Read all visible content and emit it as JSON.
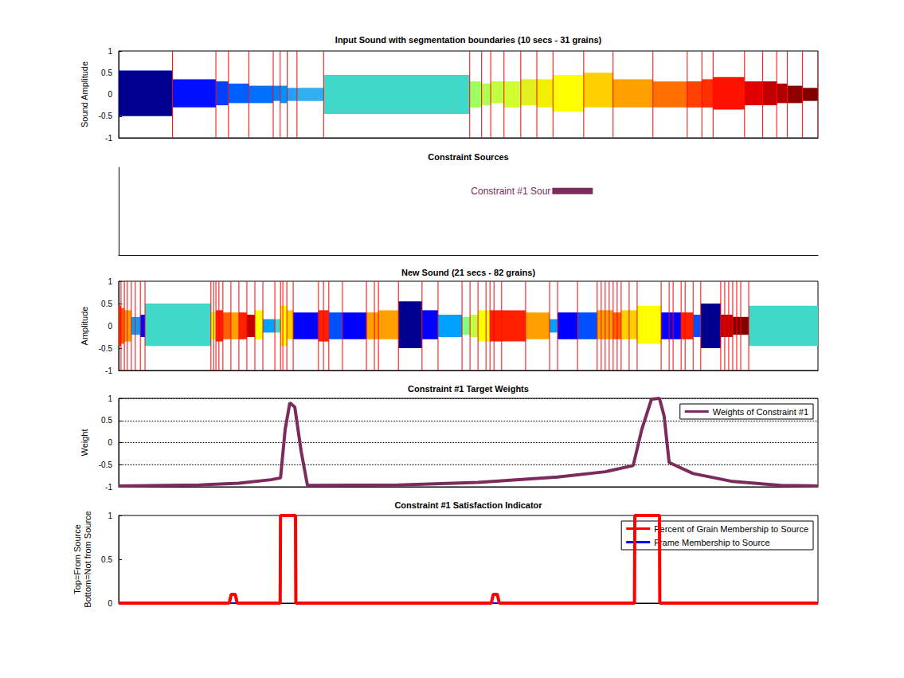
{
  "chart_data": [
    {
      "type": "waveform",
      "title": "Input Sound with segmentation boundaries (10 secs - 31 grains)",
      "ylabel": "Sound Amplitude",
      "xlim": [
        0,
        10
      ],
      "ylim": [
        -1,
        1
      ],
      "yticks": [
        -1,
        -0.5,
        0,
        0.5,
        1
      ],
      "tick_labels": "y",
      "grid": false,
      "segments": [
        {
          "start": 0,
          "end": 0.77,
          "min": -0.5,
          "max": 0.55,
          "color": "#00008f"
        },
        {
          "start": 0.77,
          "end": 1.39,
          "min": -0.3,
          "max": 0.35,
          "color": "#0010ff"
        },
        {
          "start": 1.39,
          "end": 1.57,
          "min": -0.25,
          "max": 0.3,
          "color": "#0040ff"
        },
        {
          "start": 1.57,
          "end": 1.86,
          "min": -0.2,
          "max": 0.25,
          "color": "#0060ff"
        },
        {
          "start": 1.86,
          "end": 2.21,
          "min": -0.2,
          "max": 0.2,
          "color": "#0070ff"
        },
        {
          "start": 2.21,
          "end": 2.31,
          "min": -0.15,
          "max": 0.2,
          "color": "#0080ff"
        },
        {
          "start": 2.31,
          "end": 2.41,
          "min": -0.2,
          "max": 0.2,
          "color": "#0090ff"
        },
        {
          "start": 2.41,
          "end": 2.55,
          "min": -0.15,
          "max": 0.15,
          "color": "#20a0ff"
        },
        {
          "start": 2.55,
          "end": 2.93,
          "min": -0.15,
          "max": 0.15,
          "color": "#30b0f0"
        },
        {
          "start": 2.93,
          "end": 5.02,
          "min": -0.45,
          "max": 0.45,
          "color": "#40d8c8"
        },
        {
          "start": 5.02,
          "end": 5.19,
          "min": -0.3,
          "max": 0.3,
          "color": "#a0ff60"
        },
        {
          "start": 5.19,
          "end": 5.32,
          "min": -0.25,
          "max": 0.25,
          "color": "#b0ff50"
        },
        {
          "start": 5.32,
          "end": 5.51,
          "min": -0.2,
          "max": 0.3,
          "color": "#c0ff40"
        },
        {
          "start": 5.51,
          "end": 5.75,
          "min": -0.3,
          "max": 0.3,
          "color": "#d0ff30"
        },
        {
          "start": 5.75,
          "end": 5.98,
          "min": -0.25,
          "max": 0.35,
          "color": "#e0f020"
        },
        {
          "start": 5.98,
          "end": 6.21,
          "min": -0.3,
          "max": 0.35,
          "color": "#f0f000"
        },
        {
          "start": 6.21,
          "end": 6.65,
          "min": -0.4,
          "max": 0.45,
          "color": "#ffff00"
        },
        {
          "start": 6.65,
          "end": 7.07,
          "min": -0.3,
          "max": 0.5,
          "color": "#ffd000"
        },
        {
          "start": 7.07,
          "end": 7.64,
          "min": -0.3,
          "max": 0.35,
          "color": "#ffa000"
        },
        {
          "start": 7.64,
          "end": 8.13,
          "min": -0.3,
          "max": 0.3,
          "color": "#ff7000"
        },
        {
          "start": 8.13,
          "end": 8.34,
          "min": -0.3,
          "max": 0.3,
          "color": "#ff4000"
        },
        {
          "start": 8.34,
          "end": 8.5,
          "min": -0.3,
          "max": 0.35,
          "color": "#ff3000"
        },
        {
          "start": 8.5,
          "end": 8.95,
          "min": -0.35,
          "max": 0.4,
          "color": "#ff1000"
        },
        {
          "start": 8.95,
          "end": 9.21,
          "min": -0.25,
          "max": 0.3,
          "color": "#e00000"
        },
        {
          "start": 9.21,
          "end": 9.41,
          "min": -0.25,
          "max": 0.3,
          "color": "#c00000"
        },
        {
          "start": 9.41,
          "end": 9.56,
          "min": -0.2,
          "max": 0.25,
          "color": "#b00000"
        },
        {
          "start": 9.56,
          "end": 9.78,
          "min": -0.2,
          "max": 0.2,
          "color": "#900000"
        },
        {
          "start": 9.78,
          "end": 10,
          "min": -0.15,
          "max": 0.15,
          "color": "#800000"
        }
      ],
      "boundaries": {
        "color": "#ff0000",
        "x": [
          0.77,
          1.39,
          1.57,
          1.86,
          2.21,
          2.31,
          2.41,
          2.55,
          2.93,
          5.02,
          5.19,
          5.32,
          5.51,
          5.75,
          5.98,
          6.21,
          6.65,
          7.07,
          7.64,
          8.13,
          8.34,
          8.5,
          8.95,
          9.21,
          9.41,
          9.56,
          9.78,
          10
        ]
      }
    },
    {
      "type": "timeline",
      "title": "Constraint Sources",
      "xlim": [
        0,
        10
      ],
      "tick_labels": false,
      "sources": [
        {
          "label": "Constraint #1 Sour",
          "start": 6.2,
          "end": 6.78,
          "color": "#7b2c5c"
        }
      ]
    },
    {
      "type": "waveform",
      "title": "New Sound (21 secs - 82 grains)",
      "ylabel": "Amplitude",
      "xlim": [
        0,
        21
      ],
      "ylim": [
        -1,
        1
      ],
      "yticks": [
        -1,
        -0.5,
        0,
        0.5,
        1
      ],
      "tick_labels": "y",
      "grid": false,
      "segments": [
        {
          "start": 0,
          "end": 0.07,
          "min": -0.45,
          "max": 0.45,
          "color": "#ff2000"
        },
        {
          "start": 0.07,
          "end": 0.17,
          "min": -0.4,
          "max": 0.4,
          "color": "#ff6000"
        },
        {
          "start": 0.17,
          "end": 0.38,
          "min": -0.35,
          "max": 0.35,
          "color": "#ffa000"
        },
        {
          "start": 0.38,
          "end": 0.65,
          "min": -0.2,
          "max": 0.2,
          "color": "#00a0ff"
        },
        {
          "start": 0.65,
          "end": 0.79,
          "min": -0.25,
          "max": 0.25,
          "color": "#0000ff"
        },
        {
          "start": 0.79,
          "end": 2.77,
          "min": -0.45,
          "max": 0.5,
          "color": "#40d8c8"
        },
        {
          "start": 2.77,
          "end": 2.92,
          "min": -0.3,
          "max": 0.3,
          "color": "#ffff00"
        },
        {
          "start": 2.92,
          "end": 3.13,
          "min": -0.35,
          "max": 0.35,
          "color": "#ff2000"
        },
        {
          "start": 3.13,
          "end": 3.37,
          "min": -0.3,
          "max": 0.3,
          "color": "#ff6000"
        },
        {
          "start": 3.37,
          "end": 3.61,
          "min": -0.3,
          "max": 0.3,
          "color": "#ffa000"
        },
        {
          "start": 3.61,
          "end": 3.85,
          "min": -0.3,
          "max": 0.3,
          "color": "#ff2000"
        },
        {
          "start": 3.85,
          "end": 4.09,
          "min": -0.25,
          "max": 0.25,
          "color": "#c00000"
        },
        {
          "start": 4.09,
          "end": 4.33,
          "min": -0.3,
          "max": 0.35,
          "color": "#ffff00"
        },
        {
          "start": 4.33,
          "end": 4.69,
          "min": -0.15,
          "max": 0.15,
          "color": "#00a0ff"
        },
        {
          "start": 4.69,
          "end": 4.86,
          "min": -0.15,
          "max": 0.15,
          "color": "#40d8c8"
        },
        {
          "start": 4.86,
          "end": 5.05,
          "min": -0.45,
          "max": 0.45,
          "color": "#ffff00"
        },
        {
          "start": 5.05,
          "end": 5.24,
          "min": -0.3,
          "max": 0.35,
          "color": "#ffd000"
        },
        {
          "start": 5.24,
          "end": 6.0,
          "min": -0.3,
          "max": 0.3,
          "color": "#0000ff"
        },
        {
          "start": 6.0,
          "end": 6.31,
          "min": -0.35,
          "max": 0.35,
          "color": "#ff2000"
        },
        {
          "start": 6.31,
          "end": 6.72,
          "min": -0.3,
          "max": 0.3,
          "color": "#0050ff"
        },
        {
          "start": 6.72,
          "end": 7.44,
          "min": -0.3,
          "max": 0.3,
          "color": "#0000ff"
        },
        {
          "start": 7.44,
          "end": 7.8,
          "min": -0.3,
          "max": 0.3,
          "color": "#ffa000"
        },
        {
          "start": 7.8,
          "end": 8.4,
          "min": -0.3,
          "max": 0.35,
          "color": "#ffa000"
        },
        {
          "start": 8.4,
          "end": 9.11,
          "min": -0.5,
          "max": 0.55,
          "color": "#00008f"
        },
        {
          "start": 9.11,
          "end": 9.59,
          "min": -0.3,
          "max": 0.35,
          "color": "#0000ff"
        },
        {
          "start": 9.59,
          "end": 10.31,
          "min": -0.25,
          "max": 0.25,
          "color": "#00a0ff"
        },
        {
          "start": 10.31,
          "end": 10.55,
          "min": -0.2,
          "max": 0.2,
          "color": "#80ff80"
        },
        {
          "start": 10.55,
          "end": 10.79,
          "min": -0.25,
          "max": 0.25,
          "color": "#c0ff40"
        },
        {
          "start": 10.79,
          "end": 11.15,
          "min": -0.35,
          "max": 0.35,
          "color": "#ffff00"
        },
        {
          "start": 11.15,
          "end": 11.5,
          "min": -0.35,
          "max": 0.35,
          "color": "#ff2000"
        },
        {
          "start": 11.5,
          "end": 12.22,
          "min": -0.35,
          "max": 0.35,
          "color": "#ff2000"
        },
        {
          "start": 12.22,
          "end": 12.94,
          "min": -0.3,
          "max": 0.3,
          "color": "#ffa000"
        },
        {
          "start": 12.94,
          "end": 13.18,
          "min": -0.15,
          "max": 0.15,
          "color": "#00a0ff"
        },
        {
          "start": 13.18,
          "end": 13.78,
          "min": -0.3,
          "max": 0.3,
          "color": "#0000ff"
        },
        {
          "start": 13.78,
          "end": 14.37,
          "min": -0.3,
          "max": 0.3,
          "color": "#0050ff"
        },
        {
          "start": 14.37,
          "end": 14.85,
          "min": -0.3,
          "max": 0.35,
          "color": "#ffa000"
        },
        {
          "start": 14.85,
          "end": 15.09,
          "min": -0.3,
          "max": 0.3,
          "color": "#ff6000"
        },
        {
          "start": 15.09,
          "end": 15.57,
          "min": -0.3,
          "max": 0.35,
          "color": "#ffd000"
        },
        {
          "start": 15.57,
          "end": 16.29,
          "min": -0.4,
          "max": 0.45,
          "color": "#ffff00"
        },
        {
          "start": 16.29,
          "end": 16.89,
          "min": -0.3,
          "max": 0.3,
          "color": "#0000ff"
        },
        {
          "start": 16.89,
          "end": 17.25,
          "min": -0.3,
          "max": 0.3,
          "color": "#ff2000"
        },
        {
          "start": 17.25,
          "end": 17.48,
          "min": -0.25,
          "max": 0.25,
          "color": "#0050ff"
        },
        {
          "start": 17.48,
          "end": 18.08,
          "min": -0.5,
          "max": 0.5,
          "color": "#00008f"
        },
        {
          "start": 18.08,
          "end": 18.44,
          "min": -0.25,
          "max": 0.25,
          "color": "#c00000"
        },
        {
          "start": 18.44,
          "end": 18.92,
          "min": -0.2,
          "max": 0.2,
          "color": "#800000"
        },
        {
          "start": 18.92,
          "end": 21,
          "min": -0.45,
          "max": 0.45,
          "color": "#40d8c8"
        }
      ],
      "boundaries": {
        "color": "#ff0000",
        "x": [
          0.07,
          0.17,
          0.26,
          0.38,
          0.5,
          0.65,
          0.79,
          2.77,
          2.85,
          2.92,
          3.01,
          3.13,
          3.37,
          3.61,
          3.85,
          4.09,
          4.33,
          4.69,
          4.86,
          4.93,
          5.05,
          5.24,
          6.0,
          6.15,
          6.31,
          6.72,
          7.44,
          7.68,
          7.8,
          8.4,
          9.11,
          9.59,
          10.31,
          10.55,
          10.79,
          11.03,
          11.15,
          11.27,
          11.5,
          12.22,
          12.94,
          13.18,
          13.78,
          14.37,
          14.49,
          14.61,
          14.73,
          14.85,
          14.97,
          15.09,
          15.33,
          15.57,
          16.29,
          16.53,
          16.65,
          16.89,
          17.01,
          17.25,
          17.48,
          18.08,
          18.2,
          18.32,
          18.44,
          18.56,
          18.68,
          18.92
        ]
      }
    },
    {
      "type": "line",
      "title": "Constraint #1 Target Weights",
      "ylabel": "Weight",
      "xlim": [
        0,
        21
      ],
      "ylim": [
        -1,
        1
      ],
      "yticks": [
        -1,
        -0.5,
        0,
        0.5,
        1
      ],
      "tick_labels": "y",
      "grid": true,
      "legend": "upper right",
      "series": [
        {
          "name": "Weights of Constraint #1",
          "color": "#7b2c5c",
          "x": [
            0,
            2.42,
            3.61,
            4.57,
            4.86,
            5.0,
            5.14,
            5.29,
            5.48,
            5.67,
            8.4,
            10.79,
            13.18,
            14.61,
            15.45,
            15.71,
            16.0,
            16.24,
            16.38,
            16.53,
            17.25,
            18.44,
            19.88,
            21
          ],
          "values": [
            -0.98,
            -0.96,
            -0.92,
            -0.84,
            -0.8,
            0.3,
            0.9,
            0.8,
            -0.2,
            -0.97,
            -0.96,
            -0.9,
            -0.78,
            -0.66,
            -0.52,
            0.3,
            0.98,
            1.0,
            0.6,
            -0.45,
            -0.7,
            -0.88,
            -0.97,
            -0.98
          ]
        }
      ]
    },
    {
      "type": "line",
      "title": "Constraint #1 Satisfaction Indicator",
      "ylabel": [
        "Top=From Source",
        "Bottom=Not from Source"
      ],
      "xlim": [
        0,
        21
      ],
      "ylim": [
        0,
        1
      ],
      "yticks": [
        0,
        0.5,
        1
      ],
      "tick_labels": "y",
      "grid": false,
      "legend": "upper right",
      "series": [
        {
          "name": "Percent of Grain Membership to Source",
          "color": "#ff0000",
          "x": [
            0,
            3.32,
            3.38,
            3.5,
            3.56,
            4.85,
            4.86,
            5.31,
            5.32,
            11.19,
            11.25,
            11.37,
            11.43,
            15.49,
            15.5,
            16.24,
            16.25,
            21
          ],
          "values": [
            0,
            0,
            0.1,
            0.1,
            0,
            0,
            1,
            1,
            0,
            0,
            0.1,
            0.1,
            0,
            0,
            1,
            1,
            0,
            0
          ]
        },
        {
          "name": "Frame Membership to Source",
          "color": "#0000ff",
          "x": [
            0,
            4.85,
            4.86,
            5.31,
            5.32,
            15.49,
            15.5,
            16.24,
            16.25,
            21
          ],
          "values": [
            0,
            0,
            1,
            1,
            0,
            0,
            1,
            1,
            0,
            0
          ]
        }
      ]
    }
  ]
}
